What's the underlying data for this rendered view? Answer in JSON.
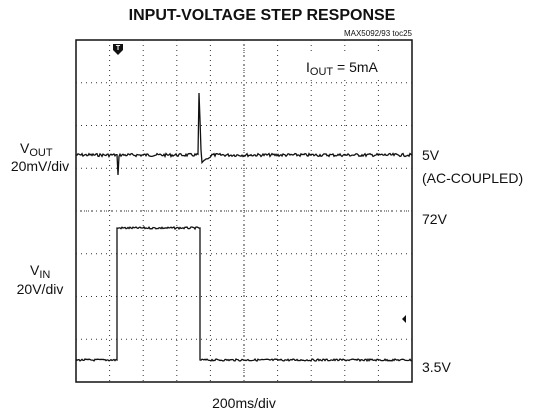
{
  "title": "INPUT-VOLTAGE STEP RESPONSE",
  "figure_id": "MAX5092/93 toc25",
  "trigger": "T",
  "annotation": {
    "main": "I",
    "sub": "OUT",
    "rest": " = 5mA"
  },
  "left_labels": [
    {
      "main": "V",
      "sub": "OUT",
      "scale": "20mV/div"
    },
    {
      "main": "V",
      "sub": "IN",
      "scale": "20V/div"
    }
  ],
  "right_labels": [
    "5V",
    "(AC-COUPLED)",
    "72V",
    "3.5V"
  ],
  "time_scale": "200ms/div"
}
